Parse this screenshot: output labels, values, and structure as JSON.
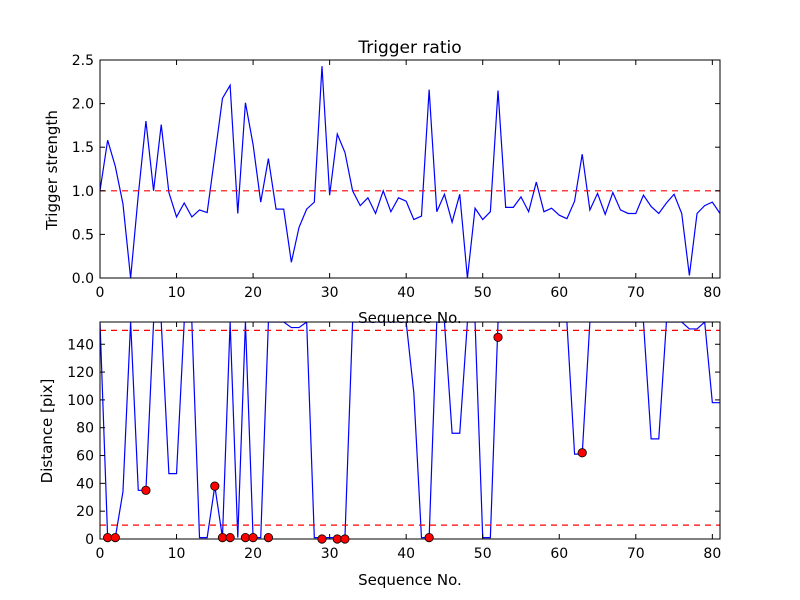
{
  "chart_data": [
    {
      "type": "line",
      "title": "Trigger ratio",
      "xlabel": "Sequence No.",
      "ylabel": "Trigger strength",
      "xlim": [
        0,
        81
      ],
      "ylim": [
        0,
        2.5
      ],
      "xticks": [
        0,
        10,
        20,
        30,
        40,
        50,
        60,
        70,
        80
      ],
      "yticks": [
        0.0,
        0.5,
        1.0,
        1.5,
        2.0,
        2.5
      ],
      "ytick_labels": [
        "0.0",
        "0.5",
        "1.0",
        "1.5",
        "2.0",
        "2.5"
      ],
      "grid": false,
      "colors": {
        "line": "#0000ff",
        "threshold": "#ff0000"
      },
      "series": [
        {
          "x": [
            0,
            1,
            2,
            3,
            4,
            5,
            6,
            7,
            8,
            9,
            10,
            11,
            12,
            13,
            14,
            15,
            16,
            17,
            18,
            19,
            20,
            21,
            22,
            23,
            24,
            25,
            26,
            27,
            28,
            29,
            30,
            31,
            32,
            33,
            34,
            35,
            36,
            37,
            38,
            39,
            40,
            41,
            42,
            43,
            44,
            45,
            46,
            47,
            48,
            49,
            50,
            51,
            52,
            53,
            54,
            55,
            56,
            57,
            58,
            59,
            60,
            61,
            62,
            63,
            64,
            65,
            66,
            67,
            68,
            69,
            70,
            71,
            72,
            73,
            74,
            75,
            76,
            77,
            78,
            79,
            80,
            81
          ],
          "y": [
            1.0,
            1.58,
            1.28,
            0.85,
            0.0,
            0.95,
            1.8,
            1.0,
            1.76,
            0.98,
            0.7,
            0.86,
            0.7,
            0.78,
            0.75,
            1.4,
            2.06,
            2.21,
            0.74,
            2.01,
            1.53,
            0.87,
            1.37,
            0.79,
            0.79,
            0.18,
            0.58,
            0.79,
            0.87,
            2.43,
            0.95,
            1.65,
            1.44,
            1.0,
            0.83,
            0.92,
            0.74,
            1.0,
            0.76,
            0.92,
            0.88,
            0.67,
            0.71,
            2.16,
            0.76,
            0.96,
            0.64,
            0.96,
            0.0,
            0.8,
            0.67,
            0.76,
            2.15,
            0.81,
            0.81,
            0.93,
            0.76,
            1.1,
            0.76,
            0.8,
            0.72,
            0.68,
            0.88,
            1.42,
            0.78,
            0.97,
            0.73,
            0.98,
            0.78,
            0.74,
            0.74,
            0.95,
            0.82,
            0.74,
            0.86,
            0.96,
            0.74,
            0.03,
            0.74,
            0.83,
            0.87,
            0.74
          ]
        }
      ],
      "reference_lines": [
        1.0
      ]
    },
    {
      "type": "line",
      "title": "",
      "xlabel": "Sequence No.",
      "ylabel": "Distance [pix]",
      "xlim": [
        0,
        81
      ],
      "ylim": [
        0,
        156
      ],
      "xticks": [
        0,
        10,
        20,
        30,
        40,
        50,
        60,
        70,
        80
      ],
      "yticks": [
        0,
        20,
        40,
        60,
        80,
        100,
        120,
        140
      ],
      "ytick_labels": [
        "0",
        "20",
        "40",
        "60",
        "80",
        "100",
        "120",
        "140"
      ],
      "grid": false,
      "colors": {
        "line": "#0000ff",
        "threshold": "#ff0000",
        "marker": "#ff0000"
      },
      "series": [
        {
          "x": [
            0,
            1,
            2,
            3,
            4,
            5,
            6,
            7,
            8,
            9,
            10,
            11,
            12,
            13,
            14,
            15,
            16,
            17,
            18,
            19,
            20,
            21,
            22,
            23,
            24,
            25,
            26,
            27,
            28,
            29,
            30,
            31,
            32,
            33,
            34,
            35,
            36,
            37,
            38,
            39,
            40,
            41,
            42,
            43,
            44,
            45,
            46,
            47,
            48,
            49,
            50,
            51,
            52,
            53,
            54,
            55,
            56,
            57,
            58,
            59,
            60,
            61,
            62,
            63,
            64,
            65,
            66,
            67,
            68,
            69,
            70,
            71,
            72,
            73,
            74,
            75,
            76,
            77,
            78,
            79,
            80,
            81
          ],
          "y": [
            156,
            1,
            1,
            34,
            156,
            35,
            35,
            156,
            156,
            47,
            47,
            156,
            156,
            1,
            1,
            38,
            1,
            156,
            1,
            156,
            1,
            1,
            156,
            156,
            156,
            152,
            152,
            156,
            1,
            1,
            1,
            1,
            1,
            156,
            156,
            156,
            156,
            156,
            156,
            156,
            156,
            105,
            1,
            1,
            156,
            156,
            76,
            76,
            156,
            156,
            1,
            1,
            156,
            156,
            156,
            156,
            156,
            156,
            156,
            156,
            156,
            156,
            61,
            61,
            156,
            156,
            156,
            156,
            156,
            156,
            156,
            156,
            72,
            72,
            156,
            156,
            156,
            151,
            151,
            156,
            98,
            98
          ]
        }
      ],
      "markers": {
        "x": [
          1,
          2,
          6,
          15,
          16,
          17,
          19,
          20,
          22,
          29,
          31,
          32,
          43,
          52,
          63
        ],
        "y": [
          1,
          1,
          35,
          38,
          1,
          1,
          1,
          1,
          1,
          0,
          0,
          0,
          1,
          145,
          62
        ]
      },
      "reference_lines": [
        10,
        150
      ]
    }
  ]
}
